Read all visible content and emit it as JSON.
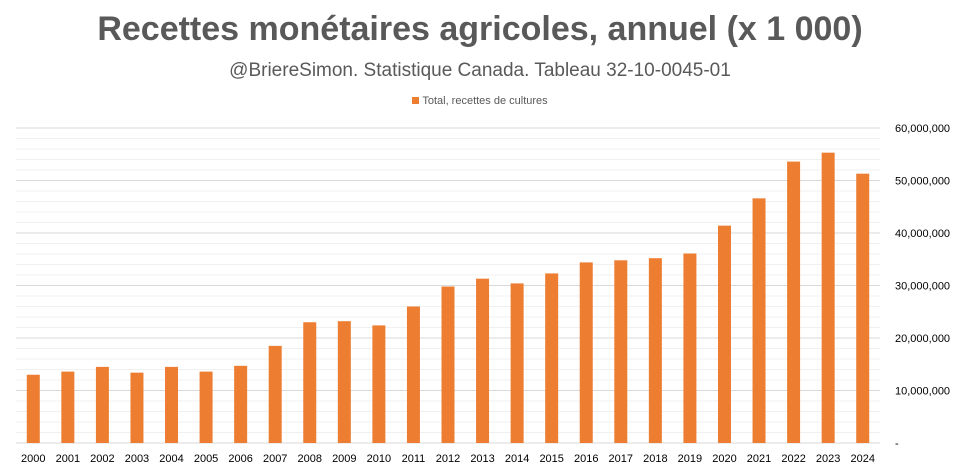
{
  "chart_data": {
    "type": "bar",
    "title": "Recettes monétaires agricoles, annuel (x 1 000)",
    "subtitle": "@BriereSimon. Statistique Canada. Tableau 32-10-0045-01",
    "legend_position": "top",
    "grid": true,
    "y_axis_side": "right",
    "series": [
      {
        "name": "Total, recettes de cultures",
        "color": "#ED7D31",
        "values": [
          13000000,
          13600000,
          14500000,
          13400000,
          14500000,
          13600000,
          14700000,
          18500000,
          23000000,
          23200000,
          22400000,
          26000000,
          29800000,
          31300000,
          30400000,
          32300000,
          34400000,
          34800000,
          35200000,
          36100000,
          41400000,
          46600000,
          53600000,
          55300000,
          51300000
        ]
      }
    ],
    "categories": [
      "2000",
      "2001",
      "2002",
      "2003",
      "2004",
      "2005",
      "2006",
      "2007",
      "2008",
      "2009",
      "2010",
      "2011",
      "2012",
      "2013",
      "2014",
      "2015",
      "2016",
      "2017",
      "2018",
      "2019",
      "2020",
      "2021",
      "2022",
      "2023",
      "2024"
    ],
    "ylim": [
      0,
      60000000
    ],
    "yticks": [
      0,
      10000000,
      20000000,
      30000000,
      40000000,
      50000000,
      60000000
    ],
    "ytick_labels": [
      "-",
      "10,000,000",
      "20,000,000",
      "30,000,000",
      "40,000,000",
      "50,000,000",
      "60,000,000"
    ],
    "grid_color": "#D9D9D9"
  }
}
